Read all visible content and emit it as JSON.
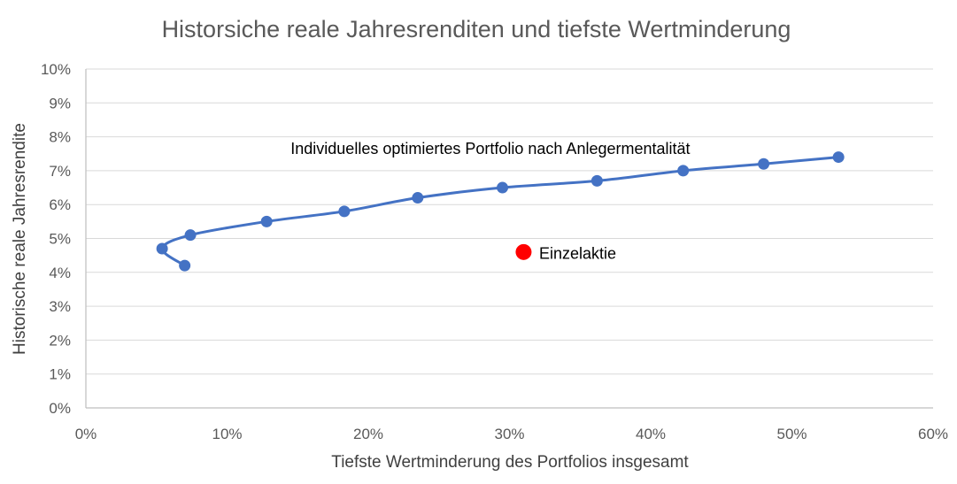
{
  "chart_data": {
    "type": "scatter",
    "title": "Historsiche reale Jahresrenditen und tiefste Wertminderung",
    "xlabel": "Tiefste Wertminderung des Portfolios insgesamt",
    "ylabel": "Historische reale Jahresrendite",
    "xlim": [
      0,
      0.6
    ],
    "ylim": [
      0,
      0.1
    ],
    "x_ticks": [
      "0%",
      "10%",
      "20%",
      "30%",
      "40%",
      "50%",
      "60%"
    ],
    "y_ticks": [
      "0%",
      "1%",
      "2%",
      "3%",
      "4%",
      "5%",
      "6%",
      "7%",
      "8%",
      "9%",
      "10%"
    ],
    "grid": "horizontal",
    "series": [
      {
        "name": "Individuelles optimiertes Portfolio nach Anlegermentalität",
        "color": "#4472c4",
        "style": "smooth-line-markers",
        "points": [
          {
            "x": 0.07,
            "y": 0.042
          },
          {
            "x": 0.054,
            "y": 0.047
          },
          {
            "x": 0.074,
            "y": 0.051
          },
          {
            "x": 0.128,
            "y": 0.055
          },
          {
            "x": 0.183,
            "y": 0.058
          },
          {
            "x": 0.235,
            "y": 0.062
          },
          {
            "x": 0.295,
            "y": 0.065
          },
          {
            "x": 0.362,
            "y": 0.067
          },
          {
            "x": 0.423,
            "y": 0.07
          },
          {
            "x": 0.48,
            "y": 0.072
          },
          {
            "x": 0.533,
            "y": 0.074
          }
        ]
      },
      {
        "name": "Einzelaktie",
        "color": "#ff0000",
        "style": "marker",
        "points": [
          {
            "x": 0.31,
            "y": 0.046
          }
        ]
      }
    ],
    "annotations": [
      {
        "text": "Individuelles optimiertes Portfolio nach Anlegermentalität",
        "x": 0.145,
        "y": 0.0765
      },
      {
        "text": "Einzelaktie",
        "x": 0.321,
        "y": 0.0455
      }
    ]
  }
}
